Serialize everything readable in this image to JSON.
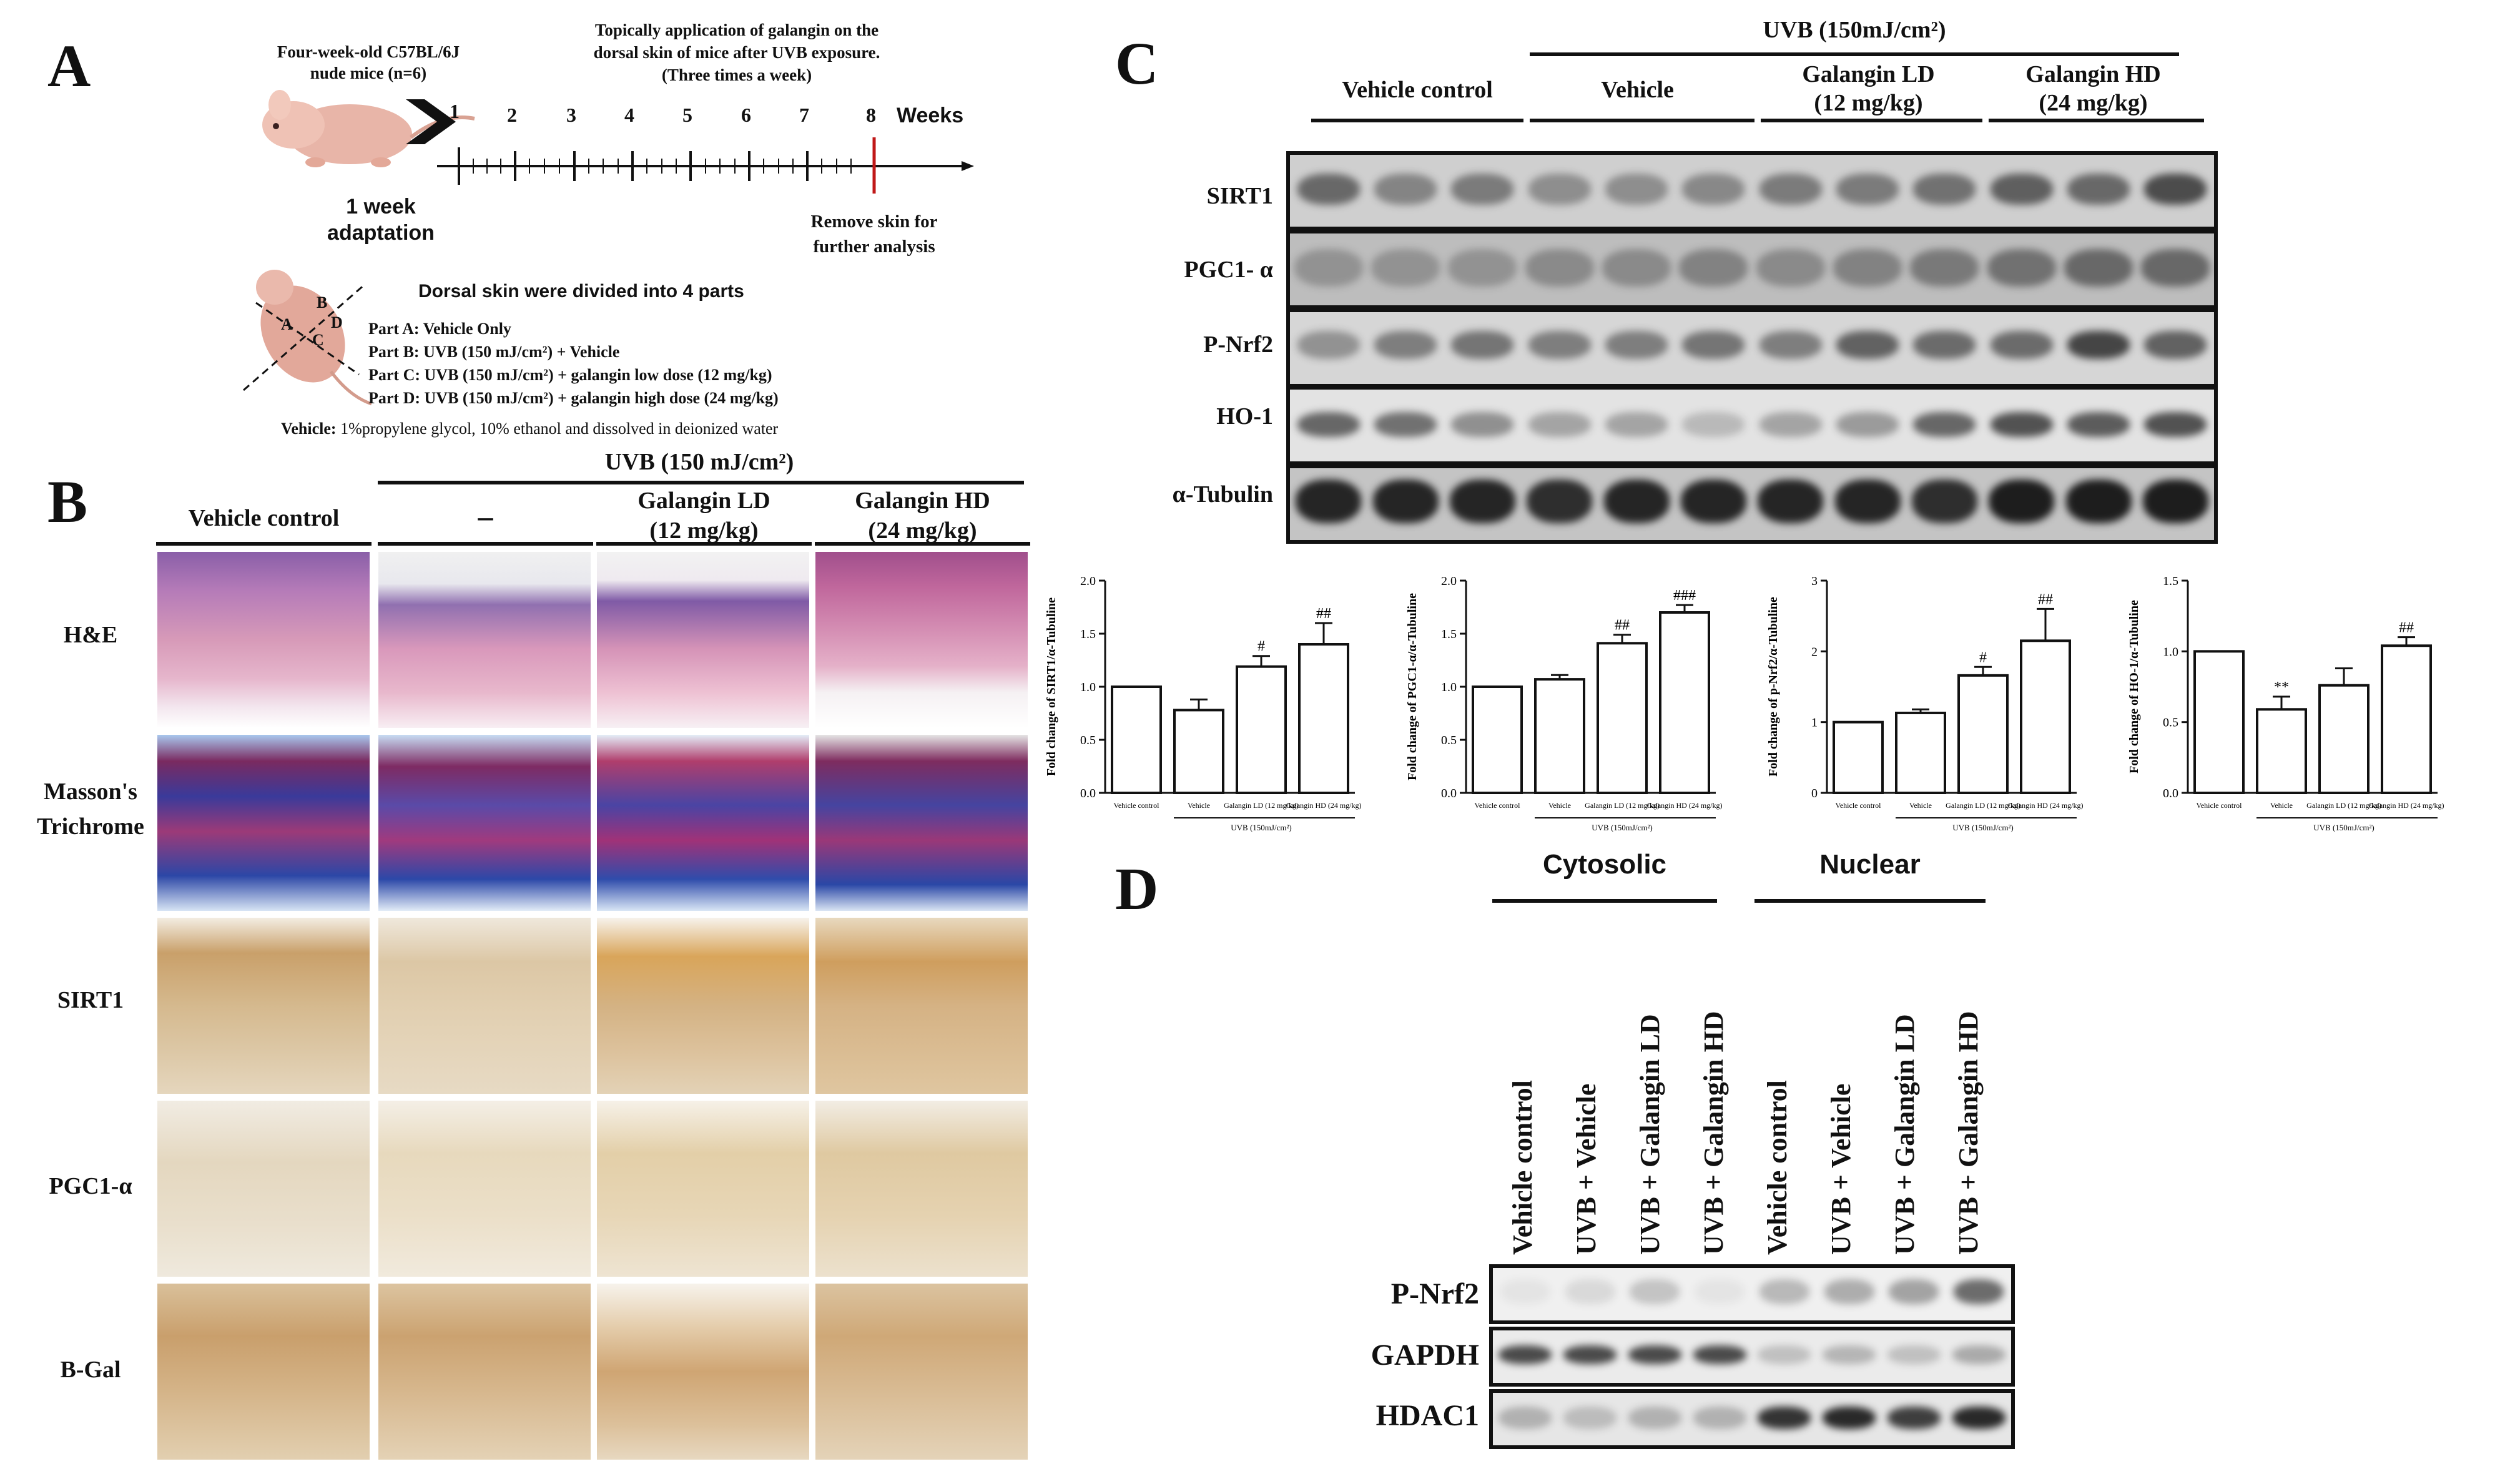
{
  "panelA": {
    "letter": "A",
    "mice_title": "Four-week-old C57BL/6J",
    "mice_subtitle": "nude mice (n=6)",
    "topical_line1": "Topically application of galangin on the",
    "topical_line2": "dorsal skin of mice after UVB exposure.",
    "topical_line3": "(Three times a week)",
    "weeks_label": "Weeks",
    "week_numbers": [
      "1",
      "2",
      "3",
      "4",
      "5",
      "6",
      "7",
      "8"
    ],
    "adaptation_line1": "1 week",
    "adaptation_line2": "adaptation",
    "remove_line1": "Remove skin for",
    "remove_line2": "further analysis",
    "dorsal_title": "Dorsal skin were divided into 4 parts",
    "parts": [
      "Part A: Vehicle Only",
      "Part B: UVB (150 mJ/cm²) + Vehicle",
      "Part C: UVB (150 mJ/cm²) + galangin low dose (12 mg/kg)",
      "Part D: UVB (150 mJ/cm²) + galangin high dose (24 mg/kg)"
    ],
    "vehicle_label": "Vehicle:",
    "vehicle_text": "1%propylene glycol, 10% ethanol and dissolved in deionized water",
    "mouse_letters": [
      "A",
      "B",
      "C",
      "D"
    ]
  },
  "panelB": {
    "letter": "B",
    "uvb_header": "UVB (150 mJ/cm²)",
    "columns": [
      "Vehicle control",
      "–",
      "Galangin LD",
      "(12 mg/kg)",
      "Galangin HD",
      "(24 mg/kg)"
    ],
    "rows": [
      "H&E",
      "Masson's",
      "Trichrome",
      "SIRT1",
      "PGC1-α",
      "B-Gal"
    ]
  },
  "panelC": {
    "letter": "C",
    "uvb_header": "UVB (150mJ/cm²)",
    "groups": [
      "Vehicle control",
      "Vehicle",
      "Galangin LD",
      "(12 mg/kg)",
      "Galangin HD",
      "(24 mg/kg)"
    ],
    "blot_labels": [
      "SIRT1",
      "PGC1- α",
      "P-Nrf2",
      "HO-1",
      "α-Tubulin"
    ]
  },
  "panelD": {
    "letter": "D",
    "cytosolic": "Cytosolic",
    "nuclear": "Nuclear",
    "lanes": [
      "Vehicle control",
      "UVB + Vehicle",
      "UVB + Galangin LD",
      "UVB + Galangin HD",
      "Vehicle control",
      "UVB + Vehicle",
      "UVB + Galangin LD",
      "UVB + Galangin HD"
    ],
    "blot_labels": [
      "P-Nrf2",
      "GAPDH",
      "HDAC1"
    ]
  },
  "chart_data": [
    {
      "type": "bar",
      "ylabel": "Fold change of SIRT1/α-Tubuline",
      "categories": [
        "Vehicle control",
        "Vehicle",
        "Galangin LD (12 mg/kg)",
        "Galangin HD (24 mg/kg)"
      ],
      "values": [
        1.0,
        0.78,
        1.19,
        1.4
      ],
      "errors": [
        0,
        0.1,
        0.1,
        0.2
      ],
      "annotations": [
        "",
        "",
        "#",
        "##"
      ],
      "group_label": "UVB (150mJ/cm²)",
      "ylim": [
        0,
        2.0
      ],
      "yticks": [
        "0.0",
        "0.5",
        "1.0",
        "1.5",
        "2.0"
      ]
    },
    {
      "type": "bar",
      "ylabel": "Fold change of PGC1-α/α-Tubuline",
      "categories": [
        "Vehicle control",
        "Vehicle",
        "Galangin LD (12 mg/kg)",
        "Galangin HD (24 mg/kg)"
      ],
      "values": [
        1.0,
        1.07,
        1.41,
        1.7
      ],
      "errors": [
        0,
        0.04,
        0.08,
        0.07
      ],
      "annotations": [
        "",
        "",
        "##",
        "###"
      ],
      "group_label": "UVB (150mJ/cm²)",
      "ylim": [
        0,
        2.0
      ],
      "yticks": [
        "0.0",
        "0.5",
        "1.0",
        "1.5",
        "2.0"
      ]
    },
    {
      "type": "bar",
      "ylabel": "Fold change of p-Nrf2/α-Tubuline",
      "categories": [
        "Vehicle control",
        "Vehicle",
        "Galangin LD (12 mg/kg)",
        "Galangin HD (24 mg/kg)"
      ],
      "values": [
        1.0,
        1.13,
        1.66,
        2.15
      ],
      "errors": [
        0,
        0.05,
        0.12,
        0.45
      ],
      "annotations": [
        "",
        "",
        "#",
        "##"
      ],
      "group_label": "UVB (150mJ/cm²)",
      "ylim": [
        0,
        3
      ],
      "yticks": [
        "0",
        "1",
        "2",
        "3"
      ]
    },
    {
      "type": "bar",
      "ylabel": "Fold change of HO-1/α-Tubuline",
      "categories": [
        "Vehicle control",
        "Vehicle",
        "Galangin LD (12 mg/kg)",
        "Galangin HD (24 mg/kg)"
      ],
      "values": [
        1.0,
        0.59,
        0.76,
        1.04
      ],
      "errors": [
        0,
        0.09,
        0.12,
        0.06
      ],
      "annotations": [
        "",
        "**",
        "",
        "##"
      ],
      "group_label": "UVB (150mJ/cm²)",
      "ylim": [
        0,
        1.5
      ],
      "yticks": [
        "0.0",
        "0.5",
        "1.0",
        "1.5"
      ]
    }
  ],
  "colors": {
    "he_pink": "#d98fb5",
    "he_purple": "#7a4f9a",
    "masson_blue": "#2f4aa8",
    "masson_red": "#b0305a",
    "ihc_tan": "#c9a675",
    "ihc_light": "#e8d7b8",
    "blot_gray": "#d4d4d4",
    "arrow_red": "#c01818"
  }
}
